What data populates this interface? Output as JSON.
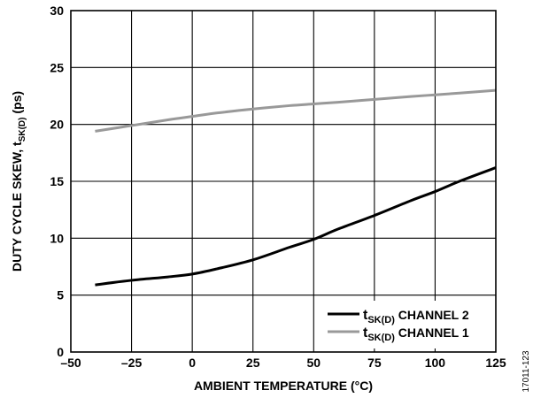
{
  "chart_data": {
    "type": "line",
    "title": "",
    "xlabel": "AMBIENT TEMPERATURE (°C)",
    "ylabel": {
      "main": "DUTY CYCLE SKEW, t",
      "sub": "SK(D)",
      "suffix": " (ps)"
    },
    "xlim": [
      -50,
      125
    ],
    "ylim": [
      0,
      30
    ],
    "xticks": [
      -50,
      -25,
      0,
      25,
      50,
      75,
      100,
      125
    ],
    "xtick_labels": [
      "–50",
      "–25",
      "0",
      "25",
      "50",
      "75",
      "100",
      "125"
    ],
    "yticks": [
      0,
      5,
      10,
      15,
      20,
      25,
      30
    ],
    "ytick_labels": [
      "0",
      "5",
      "10",
      "15",
      "20",
      "25",
      "30"
    ],
    "grid": true,
    "legend_position": "bottom-right",
    "series": [
      {
        "label": {
          "main": "t",
          "sub": "SK(D)",
          "suffix": " CHANNEL 2"
        },
        "color": "#000000",
        "x": [
          -40,
          -25,
          -10,
          0,
          10,
          25,
          40,
          50,
          60,
          75,
          90,
          100,
          110,
          125
        ],
        "y": [
          5.9,
          6.3,
          6.6,
          6.85,
          7.3,
          8.1,
          9.2,
          9.9,
          10.8,
          12.0,
          13.3,
          14.1,
          15.0,
          16.2
        ]
      },
      {
        "label": {
          "main": "t",
          "sub": "SK(D)",
          "suffix": " CHANNEL 1"
        },
        "color": "#999999",
        "x": [
          -40,
          -25,
          -10,
          0,
          10,
          25,
          40,
          50,
          60,
          75,
          90,
          100,
          110,
          125
        ],
        "y": [
          19.4,
          19.9,
          20.4,
          20.7,
          21.0,
          21.35,
          21.65,
          21.8,
          21.95,
          22.2,
          22.45,
          22.6,
          22.75,
          23.0
        ]
      }
    ]
  },
  "figure_id": "17011-123"
}
